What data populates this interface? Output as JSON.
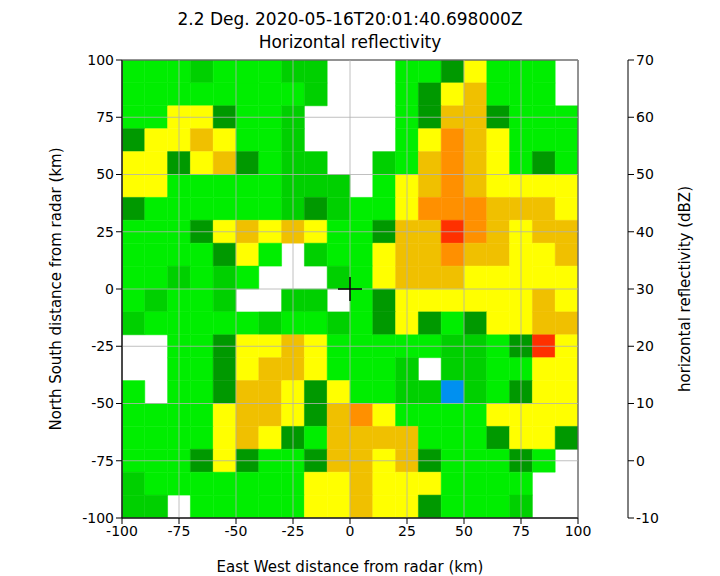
{
  "chart_data": {
    "type": "heatmap",
    "title": "2.2 Deg. 2020-05-16T20:01:40.698000Z",
    "subtitle": "Horizontal reflectivity",
    "x_label": "East West distance from radar (km)",
    "y_label": "North South distance from radar (km)",
    "xlim": [
      -100,
      100
    ],
    "ylim": [
      -100,
      100
    ],
    "xticks": [
      -100,
      -75,
      -50,
      -25,
      0,
      25,
      50,
      75,
      100
    ],
    "yticks": [
      -100,
      -75,
      -50,
      -25,
      0,
      25,
      50,
      75,
      100
    ],
    "grid": true,
    "marker": "plus",
    "points": [
      {
        "x": 0,
        "y": 0
      }
    ],
    "colorbar": {
      "label": "horizontal reflectivity (dBZ)",
      "range": [
        -10,
        70
      ],
      "ticks": [
        -10,
        0,
        10,
        20,
        30,
        40,
        50,
        60,
        70
      ]
    },
    "cells": {
      "x_edges": [
        -100,
        -90,
        -80,
        -70,
        -60,
        -50,
        -40,
        -30,
        -20,
        -10,
        0,
        10,
        20,
        30,
        40,
        50,
        60,
        70,
        80,
        90,
        100
      ],
      "y_edges": [
        100,
        90,
        80,
        70,
        60,
        50,
        40,
        30,
        20,
        10,
        0,
        -10,
        -20,
        -30,
        -40,
        -50,
        -60,
        -70,
        -80,
        -90,
        -100
      ],
      "z": [
        [
          12,
          12,
          12,
          10,
          12,
          12,
          12,
          10,
          10,
          null,
          null,
          null,
          12,
          18,
          20,
          22,
          15,
          12,
          12,
          null
        ],
        [
          12,
          12,
          15,
          15,
          18,
          15,
          12,
          12,
          10,
          null,
          null,
          null,
          15,
          20,
          25,
          28,
          15,
          12,
          12,
          null
        ],
        [
          15,
          15,
          22,
          25,
          20,
          15,
          12,
          10,
          null,
          null,
          null,
          null,
          12,
          20,
          30,
          30,
          20,
          15,
          15,
          15
        ],
        [
          20,
          22,
          25,
          28,
          25,
          18,
          12,
          10,
          null,
          null,
          null,
          null,
          15,
          25,
          35,
          30,
          22,
          15,
          15,
          15
        ],
        [
          22,
          25,
          20,
          25,
          28,
          20,
          15,
          10,
          8,
          null,
          null,
          10,
          18,
          30,
          35,
          32,
          22,
          18,
          20,
          18
        ],
        [
          25,
          22,
          18,
          15,
          18,
          15,
          12,
          10,
          10,
          8,
          null,
          12,
          22,
          32,
          38,
          33,
          25,
          25,
          25,
          22
        ],
        [
          20,
          18,
          15,
          12,
          12,
          15,
          18,
          5,
          20,
          10,
          12,
          18,
          25,
          35,
          38,
          35,
          28,
          28,
          28,
          25
        ],
        [
          15,
          12,
          15,
          20,
          25,
          28,
          25,
          30,
          25,
          12,
          12,
          20,
          28,
          32,
          42,
          38,
          30,
          25,
          30,
          28
        ],
        [
          15,
          15,
          12,
          15,
          20,
          22,
          15,
          null,
          10,
          12,
          15,
          22,
          30,
          32,
          35,
          30,
          28,
          22,
          25,
          28
        ],
        [
          12,
          12,
          10,
          12,
          10,
          12,
          null,
          null,
          null,
          10,
          15,
          22,
          28,
          30,
          28,
          25,
          25,
          22,
          22,
          22
        ],
        [
          12,
          10,
          12,
          12,
          10,
          null,
          null,
          10,
          10,
          null,
          12,
          20,
          25,
          25,
          22,
          22,
          25,
          25,
          28,
          25
        ],
        [
          10,
          12,
          15,
          15,
          12,
          12,
          10,
          12,
          12,
          10,
          15,
          20,
          22,
          20,
          18,
          20,
          22,
          25,
          28,
          28
        ],
        [
          null,
          null,
          12,
          15,
          20,
          22,
          25,
          28,
          22,
          18,
          15,
          18,
          15,
          15,
          5,
          8,
          15,
          20,
          40,
          25
        ],
        [
          null,
          null,
          12,
          18,
          20,
          25,
          28,
          30,
          25,
          18,
          12,
          12,
          10,
          null,
          5,
          5,
          12,
          18,
          22,
          25
        ],
        [
          12,
          null,
          12,
          12,
          20,
          28,
          30,
          25,
          20,
          22,
          15,
          12,
          10,
          5,
          0,
          10,
          15,
          20,
          22,
          25
        ],
        [
          12,
          12,
          15,
          18,
          25,
          30,
          28,
          25,
          20,
          28,
          35,
          22,
          15,
          12,
          12,
          18,
          22,
          25,
          25,
          22
        ],
        [
          15,
          15,
          15,
          18,
          25,
          28,
          25,
          20,
          18,
          28,
          32,
          30,
          32,
          15,
          12,
          15,
          20,
          22,
          25,
          20
        ],
        [
          12,
          15,
          18,
          20,
          22,
          20,
          18,
          15,
          20,
          28,
          28,
          25,
          30,
          20,
          15,
          15,
          18,
          20,
          15,
          null
        ],
        [
          10,
          12,
          12,
          15,
          15,
          12,
          15,
          18,
          22,
          25,
          28,
          25,
          25,
          22,
          18,
          15,
          15,
          12,
          null,
          null
        ],
        [
          10,
          10,
          null,
          12,
          12,
          12,
          12,
          15,
          22,
          25,
          28,
          25,
          22,
          20,
          15,
          12,
          12,
          10,
          null,
          null
        ]
      ]
    }
  }
}
